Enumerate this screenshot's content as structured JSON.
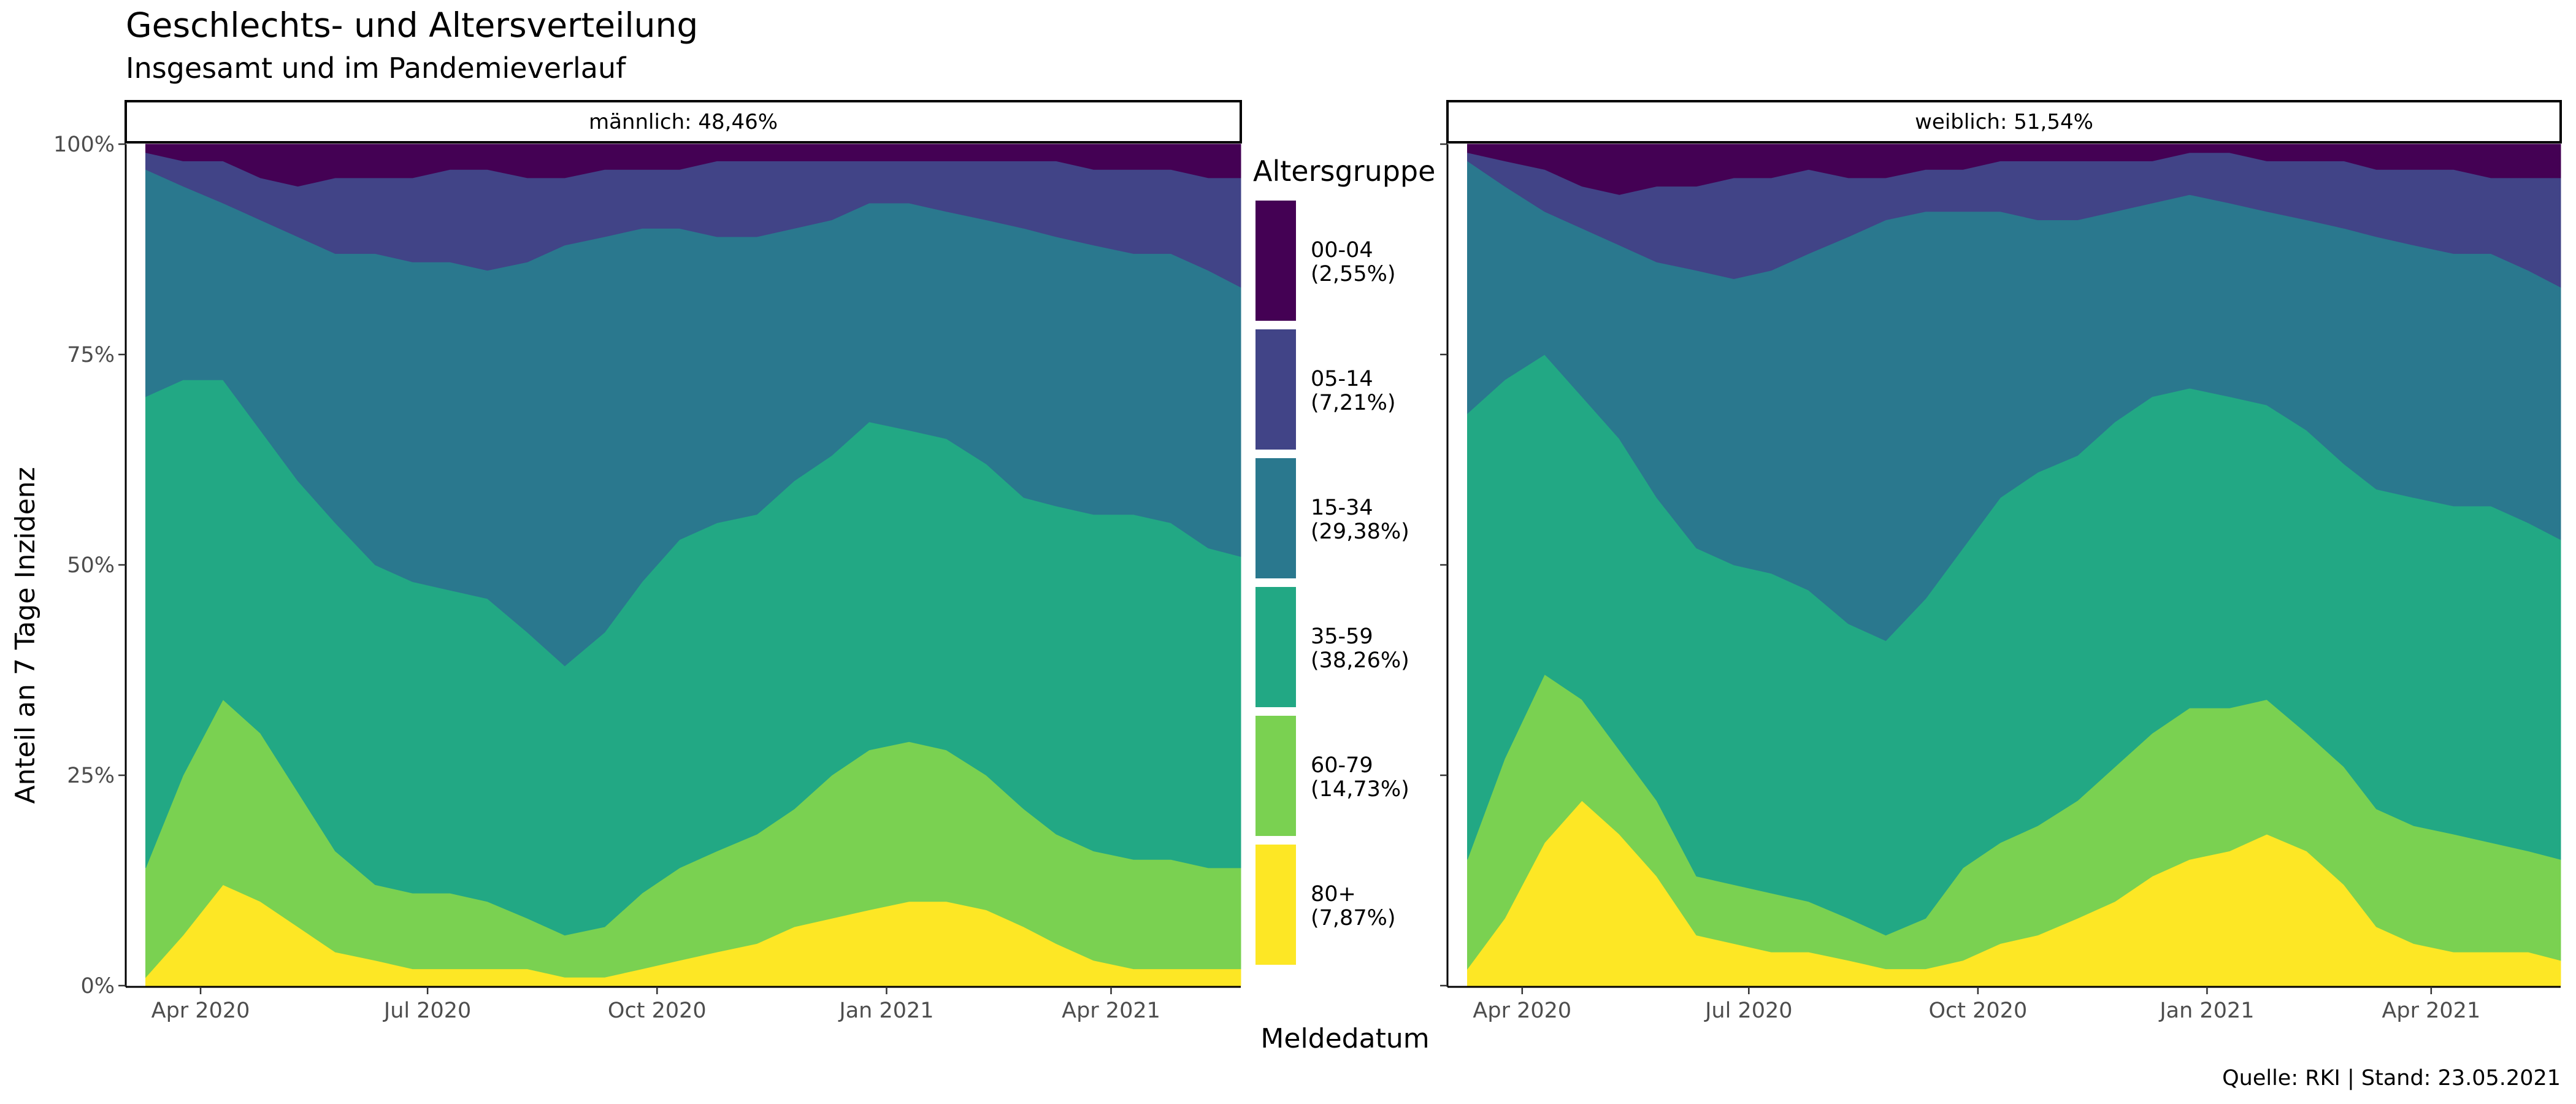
{
  "title": "Geschlechts- und Altersverteilung",
  "subtitle": "Insgesamt und im Pandemieverlauf",
  "caption": "Quelle: RKI | Stand: 23.05.2021",
  "colors": {
    "00-04": "#440154",
    "05-14": "#414487",
    "15-34": "#2a788e",
    "35-59": "#22a884",
    "60-79": "#7ad151",
    "80+": "#fde725"
  },
  "chart_data": {
    "type": "area",
    "stacked": true,
    "xlabel": "Meldedatum",
    "ylabel": "Anteil an 7 Tage Inzidenz",
    "ylim": [
      0,
      1
    ],
    "y_ticks": [
      "0%",
      "25%",
      "50%",
      "75%",
      "100%"
    ],
    "x_ticks": [
      "Apr 2020",
      "Jul 2020",
      "Oct 2020",
      "Jan 2021",
      "Apr 2021"
    ],
    "x_range": [
      "2020-03-02",
      "2021-05-23"
    ],
    "legend": {
      "title": "Altersgruppe",
      "position": "center-between-panels",
      "items": [
        {
          "group": "00-04",
          "share": "(2,55%)"
        },
        {
          "group": "05-14",
          "share": "(7,21%)"
        },
        {
          "group": "15-34",
          "share": "(29,38%)"
        },
        {
          "group": "35-59",
          "share": "(38,26%)"
        },
        {
          "group": "60-79",
          "share": "(14,73%)"
        },
        {
          "group": "80+",
          "share": "(7,87%)"
        }
      ]
    },
    "series_order_bottom_to_top": [
      "80+",
      "60-79",
      "35-59",
      "15-34",
      "05-14",
      "00-04"
    ],
    "panels": [
      {
        "label": "männlich: 48,46%",
        "dates": [
          "2020-03-10",
          "2020-03-25",
          "2020-04-10",
          "2020-04-25",
          "2020-05-10",
          "2020-05-25",
          "2020-06-10",
          "2020-06-25",
          "2020-07-10",
          "2020-07-25",
          "2020-08-10",
          "2020-08-25",
          "2020-09-10",
          "2020-09-25",
          "2020-10-10",
          "2020-10-25",
          "2020-11-10",
          "2020-11-25",
          "2020-12-10",
          "2020-12-25",
          "2021-01-10",
          "2021-01-25",
          "2021-02-10",
          "2021-02-25",
          "2021-03-10",
          "2021-03-25",
          "2021-04-10",
          "2021-04-25",
          "2021-05-10",
          "2021-05-23"
        ],
        "cumulative": {
          "80+": [
            0.01,
            0.06,
            0.12,
            0.1,
            0.07,
            0.04,
            0.03,
            0.02,
            0.02,
            0.02,
            0.02,
            0.01,
            0.01,
            0.02,
            0.03,
            0.04,
            0.05,
            0.07,
            0.08,
            0.09,
            0.1,
            0.1,
            0.09,
            0.07,
            0.05,
            0.03,
            0.02,
            0.02,
            0.02,
            0.02
          ],
          "60-79": [
            0.14,
            0.25,
            0.34,
            0.3,
            0.23,
            0.16,
            0.12,
            0.11,
            0.11,
            0.1,
            0.08,
            0.06,
            0.07,
            0.11,
            0.14,
            0.16,
            0.18,
            0.21,
            0.25,
            0.28,
            0.29,
            0.28,
            0.25,
            0.21,
            0.18,
            0.16,
            0.15,
            0.15,
            0.14,
            0.14
          ],
          "35-59": [
            0.7,
            0.72,
            0.72,
            0.66,
            0.6,
            0.55,
            0.5,
            0.48,
            0.47,
            0.46,
            0.42,
            0.38,
            0.42,
            0.48,
            0.53,
            0.55,
            0.56,
            0.6,
            0.63,
            0.67,
            0.66,
            0.65,
            0.62,
            0.58,
            0.57,
            0.56,
            0.56,
            0.55,
            0.52,
            0.51
          ],
          "15-34": [
            0.97,
            0.95,
            0.93,
            0.91,
            0.89,
            0.87,
            0.87,
            0.86,
            0.86,
            0.85,
            0.86,
            0.88,
            0.89,
            0.9,
            0.9,
            0.89,
            0.89,
            0.9,
            0.91,
            0.93,
            0.93,
            0.92,
            0.91,
            0.9,
            0.89,
            0.88,
            0.87,
            0.87,
            0.85,
            0.83
          ],
          "05-14": [
            0.99,
            0.98,
            0.98,
            0.96,
            0.95,
            0.96,
            0.96,
            0.96,
            0.97,
            0.97,
            0.96,
            0.96,
            0.97,
            0.97,
            0.97,
            0.98,
            0.98,
            0.98,
            0.98,
            0.98,
            0.98,
            0.98,
            0.98,
            0.98,
            0.98,
            0.97,
            0.97,
            0.97,
            0.96,
            0.96
          ],
          "00-04": [
            1,
            1,
            1,
            1,
            1,
            1,
            1,
            1,
            1,
            1,
            1,
            1,
            1,
            1,
            1,
            1,
            1,
            1,
            1,
            1,
            1,
            1,
            1,
            1,
            1,
            1,
            1,
            1,
            1,
            1
          ]
        }
      },
      {
        "label": "weiblich: 51,54%",
        "dates": [
          "2020-03-10",
          "2020-03-25",
          "2020-04-10",
          "2020-04-25",
          "2020-05-10",
          "2020-05-25",
          "2020-06-10",
          "2020-06-25",
          "2020-07-10",
          "2020-07-25",
          "2020-08-10",
          "2020-08-25",
          "2020-09-10",
          "2020-09-25",
          "2020-10-10",
          "2020-10-25",
          "2020-11-10",
          "2020-11-25",
          "2020-12-10",
          "2020-12-25",
          "2021-01-10",
          "2021-01-25",
          "2021-02-10",
          "2021-02-25",
          "2021-03-10",
          "2021-03-25",
          "2021-04-10",
          "2021-04-25",
          "2021-05-10",
          "2021-05-23"
        ],
        "cumulative": {
          "80+": [
            0.02,
            0.08,
            0.17,
            0.22,
            0.18,
            0.13,
            0.06,
            0.05,
            0.04,
            0.04,
            0.03,
            0.02,
            0.02,
            0.03,
            0.05,
            0.06,
            0.08,
            0.1,
            0.13,
            0.15,
            0.16,
            0.18,
            0.16,
            0.12,
            0.07,
            0.05,
            0.04,
            0.04,
            0.04,
            0.03
          ],
          "60-79": [
            0.15,
            0.27,
            0.37,
            0.34,
            0.28,
            0.22,
            0.13,
            0.12,
            0.11,
            0.1,
            0.08,
            0.06,
            0.08,
            0.14,
            0.17,
            0.19,
            0.22,
            0.26,
            0.3,
            0.33,
            0.33,
            0.34,
            0.3,
            0.26,
            0.21,
            0.19,
            0.18,
            0.17,
            0.16,
            0.15
          ],
          "35-59": [
            0.68,
            0.72,
            0.75,
            0.7,
            0.65,
            0.58,
            0.52,
            0.5,
            0.49,
            0.47,
            0.43,
            0.41,
            0.46,
            0.52,
            0.58,
            0.61,
            0.63,
            0.67,
            0.7,
            0.71,
            0.7,
            0.69,
            0.66,
            0.62,
            0.59,
            0.58,
            0.57,
            0.57,
            0.55,
            0.53
          ],
          "15-34": [
            0.98,
            0.95,
            0.92,
            0.9,
            0.88,
            0.86,
            0.85,
            0.84,
            0.85,
            0.87,
            0.89,
            0.91,
            0.92,
            0.92,
            0.92,
            0.91,
            0.91,
            0.92,
            0.93,
            0.94,
            0.93,
            0.92,
            0.91,
            0.9,
            0.89,
            0.88,
            0.87,
            0.87,
            0.85,
            0.83
          ],
          "05-14": [
            0.99,
            0.98,
            0.97,
            0.95,
            0.94,
            0.95,
            0.95,
            0.96,
            0.96,
            0.97,
            0.96,
            0.96,
            0.97,
            0.97,
            0.98,
            0.98,
            0.98,
            0.98,
            0.98,
            0.99,
            0.99,
            0.98,
            0.98,
            0.98,
            0.97,
            0.97,
            0.97,
            0.96,
            0.96,
            0.96
          ],
          "00-04": [
            1,
            1,
            1,
            1,
            1,
            1,
            1,
            1,
            1,
            1,
            1,
            1,
            1,
            1,
            1,
            1,
            1,
            1,
            1,
            1,
            1,
            1,
            1,
            1,
            1,
            1,
            1,
            1,
            1,
            1
          ]
        }
      }
    ]
  }
}
